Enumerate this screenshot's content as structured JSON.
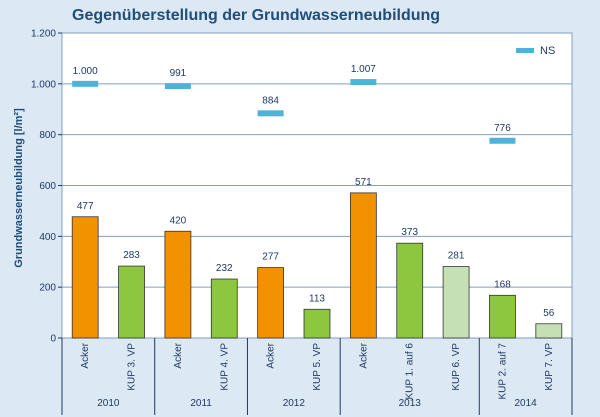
{
  "chart_data": {
    "type": "bar",
    "title": "Gegenüberstellung der Grundwasserneubildung",
    "ylabel": "Grundwasserneubildung [l/m²]",
    "xlabel": "",
    "ylim": [
      0,
      1200
    ],
    "yticks": [
      0,
      200,
      400,
      600,
      800,
      1000,
      1200
    ],
    "ytick_labels": [
      "0",
      "200",
      "400",
      "600",
      "800",
      "1.000",
      "1.200"
    ],
    "grid": true,
    "legend_position": "top-right",
    "legend": [
      {
        "name": "NS",
        "color": "#4fb3d9"
      }
    ],
    "categories": [
      "Acker",
      "KUP 3. VP",
      "Acker",
      "KUP 4. VP",
      "Acker",
      "KUP 5. VP",
      "Acker",
      "KUP 1. auf 6",
      "KUP 6. VP",
      "KUP 2. auf 7",
      "KUP 7. VP"
    ],
    "values": [
      477,
      283,
      420,
      232,
      277,
      113,
      571,
      373,
      281,
      168,
      56
    ],
    "value_labels": [
      "477",
      "283",
      "420",
      "232",
      "277",
      "113",
      "571",
      "373",
      "281",
      "168",
      "56"
    ],
    "bar_colors": [
      "#f39200",
      "#8dc63f",
      "#f39200",
      "#8dc63f",
      "#f39200",
      "#8dc63f",
      "#f39200",
      "#8dc63f",
      "#c5e0b4",
      "#8dc63f",
      "#c5e0b4"
    ],
    "ns_markers": [
      {
        "category_index": 0,
        "value": 1000,
        "label": "1.000"
      },
      {
        "category_index": 2,
        "value": 991,
        "label": "991"
      },
      {
        "category_index": 4,
        "value": 884,
        "label": "884"
      },
      {
        "category_index": 6,
        "value": 1007,
        "label": "1.007"
      },
      {
        "category_index": 9,
        "value": 776,
        "label": "776"
      }
    ],
    "groups": [
      {
        "label": "2010",
        "start": 0,
        "end": 1
      },
      {
        "label": "2011",
        "start": 2,
        "end": 3
      },
      {
        "label": "2012",
        "start": 4,
        "end": 5
      },
      {
        "label": "2013",
        "start": 6,
        "end": 8
      },
      {
        "label": "2014",
        "start": 9,
        "end": 10
      }
    ]
  }
}
